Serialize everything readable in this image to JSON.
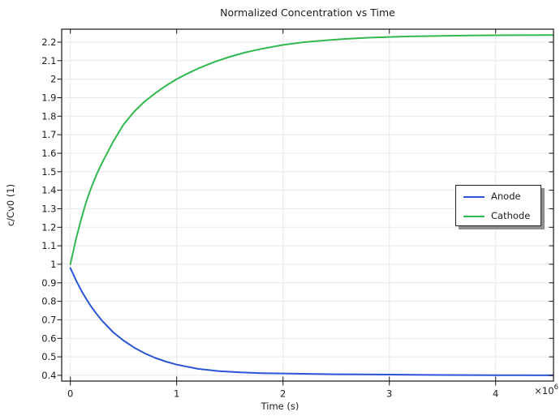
{
  "title": "Normalized Concentration vs Time",
  "x_axis": {
    "label": "Time (s)",
    "multiplier": "×10",
    "multiplier_exp": "6"
  },
  "y_axis": {
    "label": "c/Cv0 (1)"
  },
  "legend": {
    "position": "middle-right"
  },
  "style": {
    "grid_color": "#e8e8e8",
    "axis_color": "#151515",
    "text_color": "#1c1c1c",
    "background": "#ffffff",
    "legend_shadow": "#8f8f8f"
  },
  "chart_data": {
    "type": "line",
    "title": "Normalized Concentration vs Time",
    "xlabel": "Time (s)",
    "ylabel": "c/Cv0 (1)",
    "x_unit_multiplier": 1000000,
    "xlim": [
      -82000,
      4544000
    ],
    "ylim": [
      0.369,
      2.27
    ],
    "grid": true,
    "legend_position": "middle-right",
    "x_ticks": [
      {
        "v": 0,
        "label": "0"
      },
      {
        "v": 1000000,
        "label": "1"
      },
      {
        "v": 2000000,
        "label": "2"
      },
      {
        "v": 3000000,
        "label": "3"
      },
      {
        "v": 4000000,
        "label": "4"
      }
    ],
    "y_ticks": [
      {
        "v": 0.4,
        "label": "0.4"
      },
      {
        "v": 0.5,
        "label": "0.5"
      },
      {
        "v": 0.6,
        "label": "0.6"
      },
      {
        "v": 0.7,
        "label": "0.7"
      },
      {
        "v": 0.8,
        "label": "0.8"
      },
      {
        "v": 0.9,
        "label": "0.9"
      },
      {
        "v": 1.0,
        "label": "1"
      },
      {
        "v": 1.1,
        "label": "1.1"
      },
      {
        "v": 1.2,
        "label": "1.2"
      },
      {
        "v": 1.3,
        "label": "1.3"
      },
      {
        "v": 1.4,
        "label": "1.4"
      },
      {
        "v": 1.5,
        "label": "1.5"
      },
      {
        "v": 1.6,
        "label": "1.6"
      },
      {
        "v": 1.7,
        "label": "1.7"
      },
      {
        "v": 1.8,
        "label": "1.8"
      },
      {
        "v": 1.9,
        "label": "1.9"
      },
      {
        "v": 2.0,
        "label": "2"
      },
      {
        "v": 2.1,
        "label": "2.1"
      },
      {
        "v": 2.2,
        "label": "2.2"
      }
    ],
    "series": [
      {
        "name": "Anode",
        "color": "#2a55d6",
        "x": [
          0,
          50000,
          100000,
          150000,
          200000,
          250000,
          300000,
          400000,
          500000,
          600000,
          700000,
          800000,
          900000,
          1000000,
          1200000,
          1400000,
          1600000,
          1800000,
          2000000,
          2250000,
          2500000,
          2750000,
          3000000,
          3500000,
          4000000,
          4550000
        ],
        "y": [
          0.98,
          0.917,
          0.861,
          0.812,
          0.768,
          0.729,
          0.694,
          0.634,
          0.588,
          0.55,
          0.519,
          0.494,
          0.474,
          0.458,
          0.435,
          0.423,
          0.416,
          0.412,
          0.41,
          0.408,
          0.406,
          0.405,
          0.404,
          0.402,
          0.401,
          0.4
        ]
      },
      {
        "name": "Cathode",
        "color": "#30b94e",
        "x": [
          0,
          50000,
          100000,
          150000,
          200000,
          250000,
          300000,
          400000,
          500000,
          600000,
          700000,
          800000,
          900000,
          1000000,
          1100000,
          1200000,
          1350000,
          1500000,
          1650000,
          1800000,
          2000000,
          2200000,
          2400000,
          2600000,
          2800000,
          3000000,
          3250000,
          3500000,
          3750000,
          4000000,
          4250000,
          4550000
        ],
        "y": [
          1.0,
          1.13,
          1.24,
          1.34,
          1.42,
          1.49,
          1.55,
          1.66,
          1.755,
          1.825,
          1.88,
          1.925,
          1.965,
          2.0,
          2.03,
          2.057,
          2.092,
          2.121,
          2.145,
          2.164,
          2.185,
          2.2,
          2.21,
          2.218,
          2.224,
          2.228,
          2.232,
          2.234,
          2.236,
          2.237,
          2.2375,
          2.238
        ]
      }
    ]
  }
}
